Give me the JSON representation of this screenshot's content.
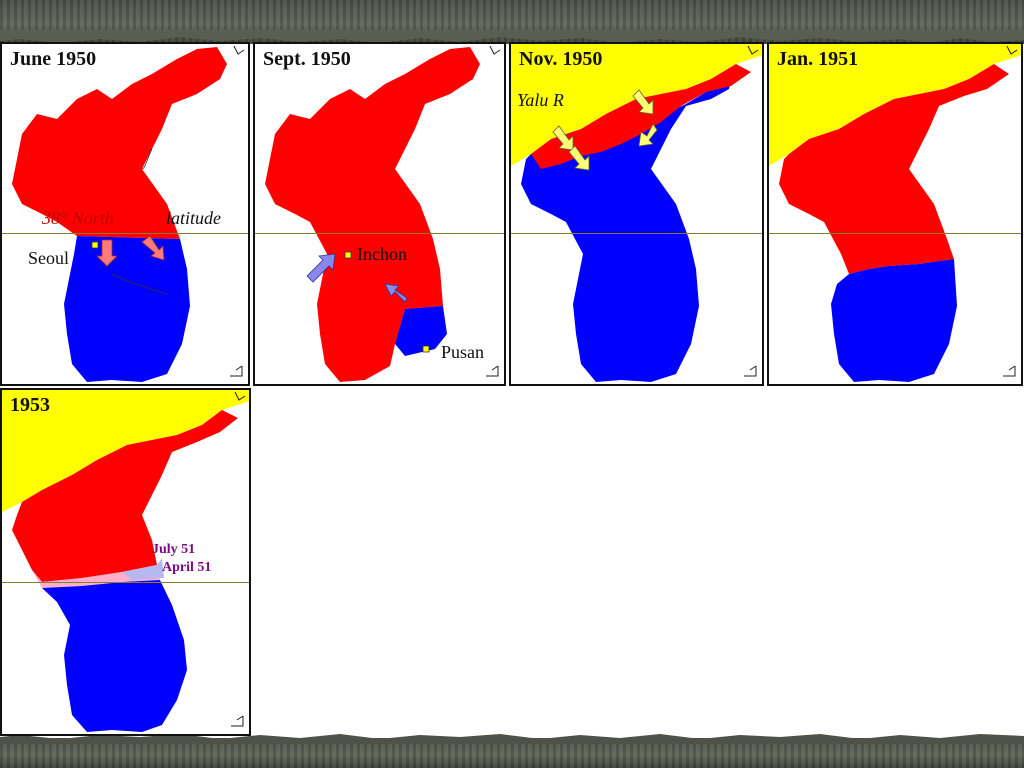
{
  "panels": [
    {
      "id": "june-1950",
      "title": "June 1950",
      "labels": {
        "latitude_prefix": "38° North",
        "latitude_suffix": "latitude",
        "city": "Seoul"
      }
    },
    {
      "id": "sept-1950",
      "title": "Sept. 1950",
      "labels": {
        "city1": "Inchon",
        "city2": "Pusan"
      }
    },
    {
      "id": "nov-1950",
      "title": "Nov. 1950",
      "labels": {
        "river": "Yalu R"
      }
    },
    {
      "id": "jan-1951",
      "title": "Jan. 1951"
    },
    {
      "id": "1953",
      "title": "1953",
      "labels": {
        "line1": "July 51",
        "line2": "April 51"
      }
    }
  ],
  "colors": {
    "north": "#ff0000",
    "south": "#0000ff",
    "china": "#ffff00",
    "latitude_line": "#8a7a2c",
    "arrow_north": "#ff7a7a",
    "arrow_un": "#8888ee",
    "arrow_china": "#ffff77"
  }
}
